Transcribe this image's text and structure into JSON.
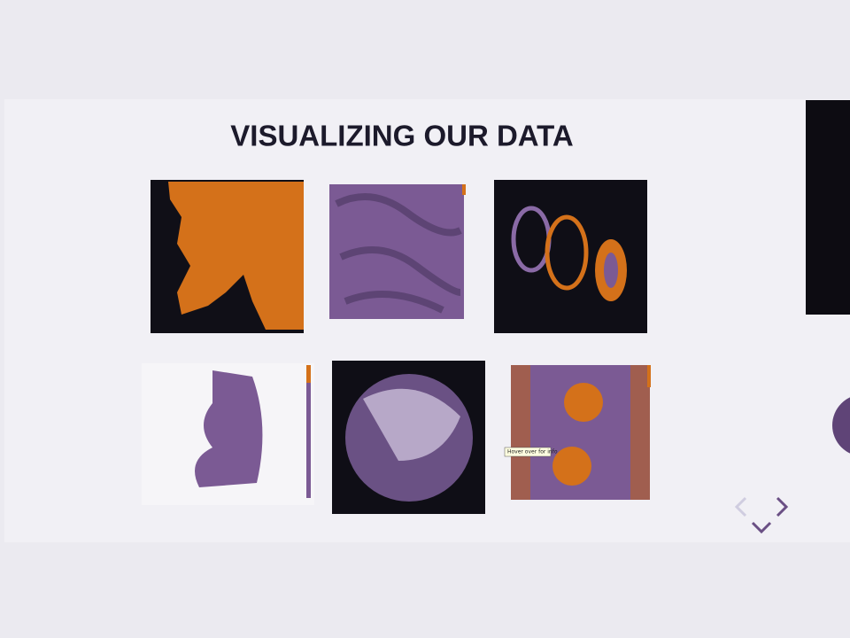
{
  "slide": {
    "title": "VISUALIZING OUR DATA",
    "tooltip": "Hover over for info"
  }
}
